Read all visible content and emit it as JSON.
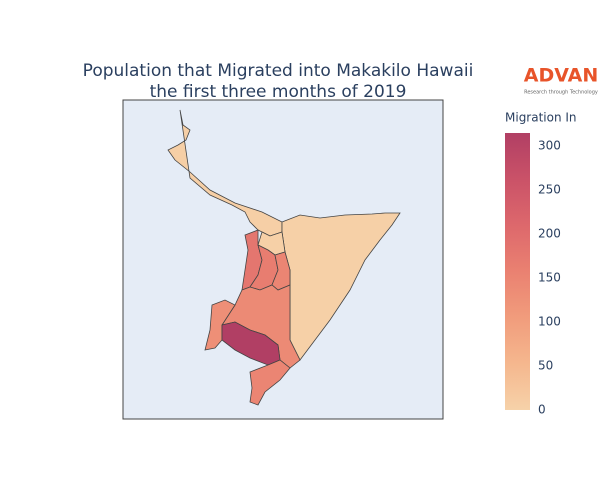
{
  "chart_data": {
    "type": "choropleth",
    "title": [
      "Population that Migrated into Makakilo Hawaii",
      "the first three months of 2019"
    ],
    "logo": {
      "name": "ADVAN",
      "tagline": "Research through Technology"
    },
    "colorbar_title": "Migration In",
    "values": [
      5,
      3,
      4,
      180,
      165,
      150,
      140,
      130,
      315,
      150
    ],
    "colorscale": [
      "#f6d2a9",
      "#f5b78e",
      "#f19c7c",
      "#ea8171",
      "#dd686c",
      "#ca5268",
      "#b13f64"
    ],
    "clim": [
      0,
      315
    ],
    "cticks": [
      0,
      50,
      100,
      150,
      200,
      250,
      300
    ]
  }
}
